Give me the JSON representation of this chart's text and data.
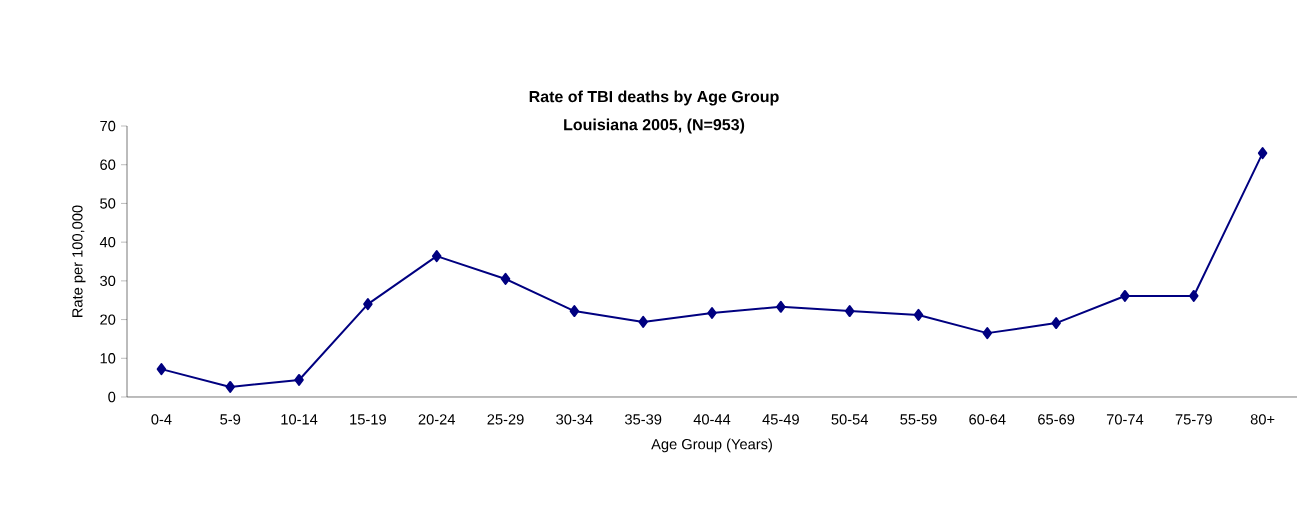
{
  "chart_data": {
    "type": "line",
    "title": "Rate of TBI deaths by Age Group",
    "subtitle": "Louisiana 2005, (N=953)",
    "xlabel": "Age Group (Years)",
    "ylabel": "Rate per 100,000",
    "categories": [
      "0-4",
      "5-9",
      "10-14",
      "15-19",
      "20-24",
      "25-29",
      "30-34",
      "35-39",
      "40-44",
      "45-49",
      "50-54",
      "55-59",
      "60-64",
      "65-69",
      "70-74",
      "75-79",
      "80+"
    ],
    "series": [
      {
        "color": "#000080",
        "values": [
          7.2,
          2.6,
          4.4,
          24.0,
          36.4,
          30.5,
          22.2,
          19.4,
          21.7,
          23.3,
          22.2,
          21.2,
          16.5,
          19.1,
          26.1,
          26.1,
          63.0
        ]
      }
    ],
    "ylim": [
      0,
      70
    ],
    "yticks": [
      0,
      10,
      20,
      30,
      40,
      50,
      60,
      70
    ],
    "grid": false,
    "marker": "diamond",
    "line_style": "solid"
  }
}
